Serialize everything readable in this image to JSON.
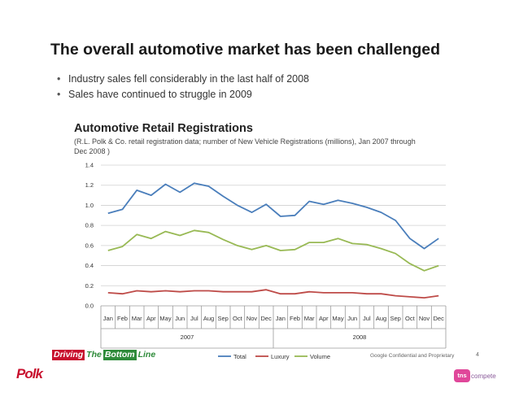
{
  "slide": {
    "title": "The overall automotive market has been challenged",
    "bullets": [
      "Industry sales fell considerably in the last half of 2008",
      "Sales have continued to struggle in 2009"
    ]
  },
  "chart_data": {
    "type": "line",
    "title": "Automotive Retail Registrations",
    "subtitle": "(R.L. Polk & Co. retail registration data; number of New Vehicle Registrations (millions), Jan 2007 through Dec 2008 )",
    "categories": [
      "Jan",
      "Feb",
      "Mar",
      "Apr",
      "May",
      "Jun",
      "Jul",
      "Aug",
      "Sep",
      "Oct",
      "Nov",
      "Dec",
      "Jan",
      "Feb",
      "Mar",
      "Apr",
      "May",
      "Jun",
      "Jul",
      "Aug",
      "Sep",
      "Oct",
      "Nov",
      "Dec"
    ],
    "year_labels": [
      "2007",
      "2008"
    ],
    "ylim": [
      0,
      1.4
    ],
    "yticks": [
      "0.0",
      "0.2",
      "0.4",
      "0.6",
      "0.8",
      "1.0",
      "1.2",
      "1.4"
    ],
    "ytick_values": [
      0,
      0.2,
      0.4,
      0.6,
      0.8,
      1.0,
      1.2,
      1.4
    ],
    "grid": true,
    "legend_position": "bottom",
    "series": [
      {
        "name": "Total",
        "color": "#4a7ebb",
        "values": [
          0.92,
          0.96,
          1.15,
          1.1,
          1.21,
          1.13,
          1.22,
          1.19,
          1.09,
          1.0,
          0.93,
          1.01,
          0.89,
          0.9,
          1.04,
          1.01,
          1.05,
          1.02,
          0.98,
          0.93,
          0.85,
          0.67,
          0.57,
          0.67
        ]
      },
      {
        "name": "Luxury",
        "color": "#be4b48",
        "values": [
          0.13,
          0.12,
          0.15,
          0.14,
          0.15,
          0.14,
          0.15,
          0.15,
          0.14,
          0.14,
          0.14,
          0.16,
          0.12,
          0.12,
          0.14,
          0.13,
          0.13,
          0.13,
          0.12,
          0.12,
          0.1,
          0.09,
          0.08,
          0.1
        ]
      },
      {
        "name": "Volume",
        "color": "#98b954",
        "values": [
          0.55,
          0.59,
          0.71,
          0.67,
          0.74,
          0.7,
          0.75,
          0.73,
          0.66,
          0.6,
          0.56,
          0.6,
          0.55,
          0.56,
          0.63,
          0.63,
          0.67,
          0.62,
          0.61,
          0.57,
          0.52,
          0.42,
          0.35,
          0.4
        ]
      }
    ]
  },
  "footer": {
    "brand_words": [
      "Driving",
      "The",
      "Bottom",
      "Line"
    ],
    "confidential": "Google Confidential and Proprietary",
    "page_number": "4",
    "polk_logo": "Polk",
    "tns_badge": "tns",
    "tns_text": "compete"
  }
}
